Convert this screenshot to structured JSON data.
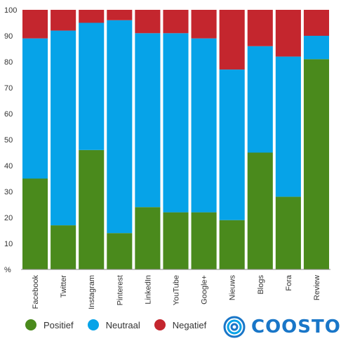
{
  "chart_data": {
    "type": "bar",
    "stacked": true,
    "categories": [
      "Facebook",
      "Twitter",
      "Instagram",
      "Pinterest",
      "LinkedIn",
      "YouTube",
      "Google+",
      "Nieuws",
      "Blogs",
      "Fora",
      "Review"
    ],
    "series": [
      {
        "name": "Positief",
        "color": "#4a8a1c",
        "values": [
          35,
          17,
          46,
          14,
          24,
          22,
          22,
          19,
          45,
          28,
          81
        ]
      },
      {
        "name": "Neutraal",
        "color": "#06a3e8",
        "values": [
          54,
          75,
          49,
          82,
          67,
          69,
          67,
          58,
          41,
          54,
          9
        ]
      },
      {
        "name": "Negatief",
        "color": "#c4262e",
        "values": [
          11,
          8,
          5,
          4,
          9,
          9,
          11,
          23,
          14,
          18,
          10
        ]
      }
    ],
    "yticks": [
      "100",
      "90",
      "80",
      "70",
      "60",
      "50",
      "40",
      "30",
      "20",
      "10",
      "%"
    ],
    "ylim": [
      0,
      100
    ]
  },
  "legend": [
    {
      "label": "Positief",
      "color": "#4a8a1c"
    },
    {
      "label": "Neutraal",
      "color": "#06a3e8"
    },
    {
      "label": "Negatief",
      "color": "#c4262e"
    }
  ],
  "brand": {
    "name": "COOSTO",
    "color": "#1976c8"
  }
}
